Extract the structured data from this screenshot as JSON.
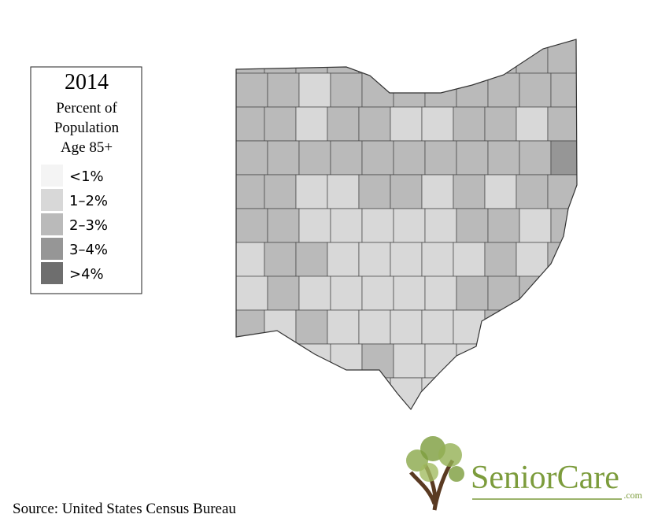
{
  "legend": {
    "title": "2014",
    "subtitle": [
      "Percent of",
      "Population",
      "Age 85+"
    ],
    "items": [
      {
        "label": "<1%",
        "color": "#f4f4f4"
      },
      {
        "label": "1–2%",
        "color": "#d8d8d8"
      },
      {
        "label": "2–3%",
        "color": "#bababa"
      },
      {
        "label": "3–4%",
        "color": "#969696"
      },
      {
        "label": ">4%",
        "color": "#6e6e6e"
      }
    ]
  },
  "source": "Source: United States Census Bureau",
  "logo": {
    "name": "SeniorCare",
    "suffix": ".com"
  }
}
